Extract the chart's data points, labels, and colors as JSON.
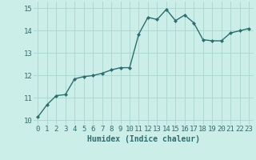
{
  "x": [
    0,
    1,
    2,
    3,
    4,
    5,
    6,
    7,
    8,
    9,
    10,
    11,
    12,
    13,
    14,
    15,
    16,
    17,
    18,
    19,
    20,
    21,
    22,
    23
  ],
  "y": [
    10.15,
    10.7,
    11.1,
    11.15,
    11.85,
    11.95,
    12.0,
    12.1,
    12.25,
    12.35,
    12.35,
    13.85,
    14.6,
    14.5,
    14.95,
    14.45,
    14.7,
    14.35,
    13.6,
    13.55,
    13.55,
    13.9,
    14.0,
    14.1
  ],
  "line_color": "#2d6e6e",
  "marker": "D",
  "marker_size": 2,
  "line_width": 1.0,
  "bg_color": "#cceee8",
  "grid_color": "#aad4cc",
  "xlabel": "Humidex (Indice chaleur)",
  "xlabel_color": "#2d6e6e",
  "xlabel_fontsize": 7,
  "tick_color": "#2d6e6e",
  "tick_fontsize": 6.5,
  "ylim": [
    9.8,
    15.3
  ],
  "xlim": [
    -0.5,
    23.5
  ],
  "yticks": [
    10,
    11,
    12,
    13,
    14,
    15
  ],
  "xticks": [
    0,
    1,
    2,
    3,
    4,
    5,
    6,
    7,
    8,
    9,
    10,
    11,
    12,
    13,
    14,
    15,
    16,
    17,
    18,
    19,
    20,
    21,
    22,
    23
  ]
}
